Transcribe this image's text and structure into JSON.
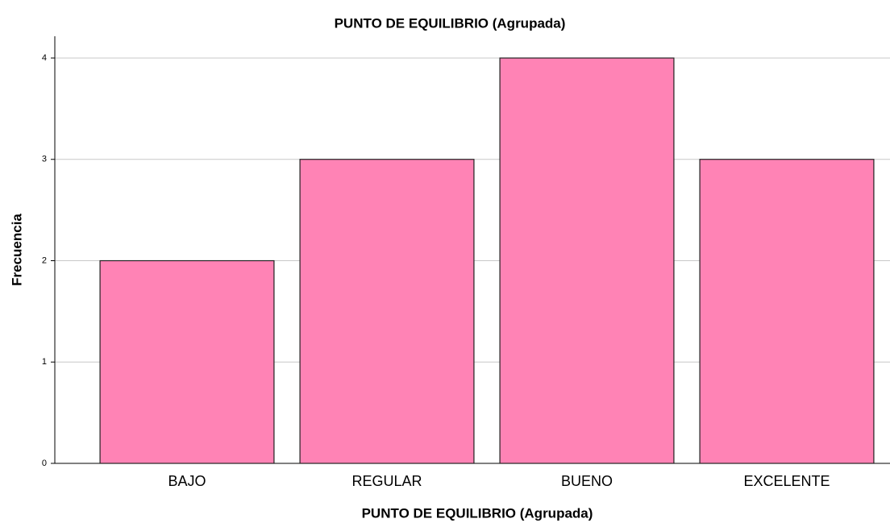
{
  "chart_data": {
    "type": "bar",
    "title": "PUNTO DE EQUILIBRIO (Agrupada)",
    "x_label": "PUNTO DE EQUILIBRIO (Agrupada)",
    "y_label": "Frecuencia",
    "categories": [
      "BAJO",
      "REGULAR",
      "BUENO",
      "EXCELENTE"
    ],
    "values": [
      2,
      3,
      4,
      3
    ],
    "color": "#ff83b5",
    "ylim": [
      0,
      4
    ],
    "yticks": [
      0,
      1,
      2,
      3,
      4
    ],
    "grid": true
  }
}
